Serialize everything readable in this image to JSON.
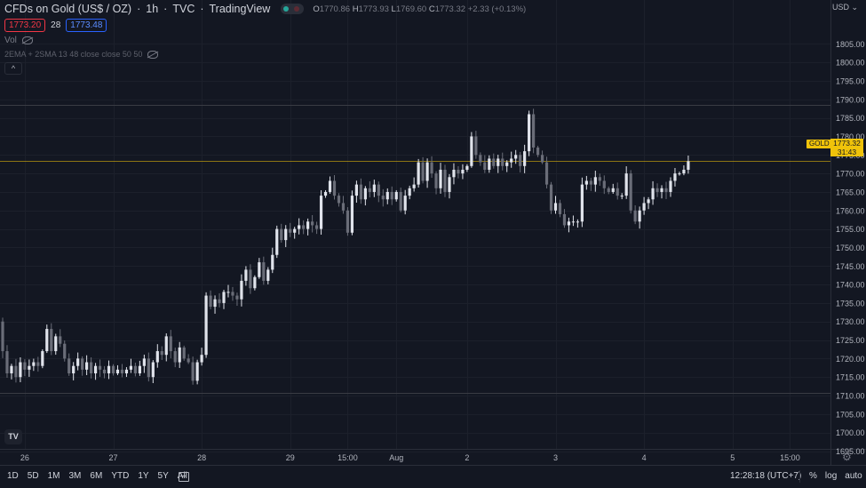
{
  "legend": {
    "title": "CFDs on Gold (US$ / OZ)",
    "interval": "1h",
    "source": "TVC",
    "provider": "TradingView",
    "ohlc": {
      "o_label": "O",
      "o": "1770.86",
      "h_label": "H",
      "h": "1773.93",
      "l_label": "L",
      "l": "1769.60",
      "c_label": "C",
      "c": "1773.32",
      "change": "+2.33 (+0.13%)"
    },
    "sell_price": "1773.20",
    "spread": "28",
    "buy_price": "1773.48",
    "volume_label": "Vol",
    "indicator_label": "2EMA + 2SMA 13 48 close close 50 50",
    "collapse_glyph": "^",
    "colors": {
      "up": "#e0e3eb",
      "down": "#6a6d78",
      "sell": "#f23645",
      "buy": "#2962ff",
      "price_line": "#f0c30a"
    }
  },
  "price_axis": {
    "currency": "USD",
    "current_symbol": "GOLD",
    "current_price": "1773.32",
    "countdown": "31:43"
  },
  "chart_data": {
    "type": "candlestick",
    "title": "CFDs on Gold (US$ / OZ)",
    "ylim": [
      1692,
      1810
    ],
    "y_ticks": [
      1695,
      1700,
      1705,
      1710,
      1715,
      1720,
      1725,
      1730,
      1735,
      1740,
      1745,
      1750,
      1755,
      1760,
      1765,
      1770,
      1775,
      1780,
      1785,
      1790,
      1795,
      1800,
      1805
    ],
    "y_tick_labels": [
      "1695.00",
      "1700.00",
      "1705.00",
      "1710.00",
      "1715.00",
      "1720.00",
      "1725.00",
      "1730.00",
      "1735.00",
      "1740.00",
      "1745.00",
      "1750.00",
      "1755.00",
      "1760.00",
      "1765.00",
      "1770.00",
      "1775.00",
      "1780.00",
      "1785.00",
      "1790.00",
      "1795.00",
      "1800.00",
      "1805.00"
    ],
    "x_ticks": [
      {
        "label": "26",
        "bar": 5
      },
      {
        "label": "27",
        "bar": 25
      },
      {
        "label": "28",
        "bar": 45
      },
      {
        "label": "29",
        "bar": 65
      },
      {
        "label": "15:00",
        "bar": 78
      },
      {
        "label": "Aug",
        "bar": 89
      },
      {
        "label": "2",
        "bar": 105
      },
      {
        "label": "3",
        "bar": 125
      },
      {
        "label": "4",
        "bar": 145
      },
      {
        "label": "5",
        "bar": 165
      },
      {
        "label": "15:00",
        "bar": 178
      }
    ],
    "horizontal_lines": [
      1788.5,
      1710.8
    ],
    "current_price": 1773.32,
    "grid": true,
    "close": [
      1722,
      1716,
      1718,
      1715,
      1719,
      1717,
      1718,
      1719,
      1718,
      1722,
      1728,
      1722,
      1726,
      1724,
      1720,
      1716,
      1718,
      1720,
      1717,
      1719,
      1716,
      1718,
      1717,
      1716,
      1718,
      1716,
      1717,
      1716,
      1717,
      1718,
      1716,
      1718,
      1720,
      1715,
      1719,
      1722,
      1721,
      1726,
      1722,
      1719,
      1723,
      1720,
      1719,
      1714,
      1719,
      1721,
      1737,
      1734,
      1736,
      1735,
      1738,
      1738,
      1737,
      1736,
      1741,
      1744,
      1739,
      1742,
      1746,
      1741,
      1744,
      1748,
      1755,
      1752,
      1755,
      1754,
      1755,
      1756,
      1755,
      1757,
      1756,
      1755,
      1764,
      1765,
      1768,
      1764,
      1762,
      1760,
      1754,
      1764,
      1767,
      1763,
      1766,
      1765,
      1767,
      1764,
      1763,
      1765,
      1763,
      1765,
      1760,
      1764,
      1766,
      1767,
      1773,
      1768,
      1773,
      1770,
      1766,
      1771,
      1765,
      1769,
      1771,
      1770,
      1771,
      1772,
      1780,
      1775,
      1773,
      1771,
      1774,
      1772,
      1774,
      1772,
      1773,
      1774,
      1775,
      1772,
      1776,
      1786,
      1777,
      1775,
      1773,
      1767,
      1760,
      1762,
      1759,
      1756,
      1757,
      1757,
      1757,
      1767,
      1768,
      1767,
      1769,
      1768,
      1766,
      1765,
      1766,
      1764,
      1764,
      1770,
      1760,
      1757,
      1760,
      1762,
      1763,
      1766,
      1765,
      1766,
      1765,
      1768,
      1770,
      1770,
      1771,
      1773.3
    ]
  },
  "bottom_bar": {
    "ranges": [
      "1D",
      "5D",
      "1M",
      "3M",
      "6M",
      "YTD",
      "1Y",
      "5Y",
      "All"
    ],
    "time": "12:28:18 (UTC+7)",
    "percent_label": "%",
    "log_label": "log",
    "auto_label": "auto"
  }
}
